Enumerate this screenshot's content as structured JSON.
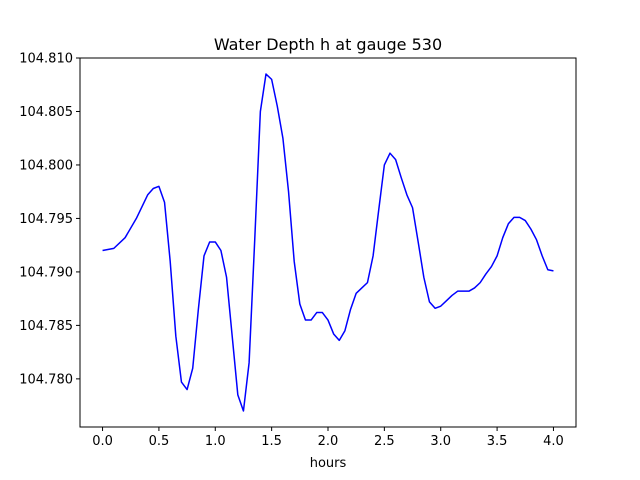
{
  "chart_data": {
    "type": "line",
    "title": "Water Depth h at gauge 530",
    "xlabel": "hours",
    "ylabel": "",
    "xlim": [
      -0.2,
      4.2
    ],
    "ylim": [
      104.7755,
      104.81
    ],
    "xticks": [
      0.0,
      0.5,
      1.0,
      1.5,
      2.0,
      2.5,
      3.0,
      3.5,
      4.0
    ],
    "xtick_labels": [
      "0.0",
      "0.5",
      "1.0",
      "1.5",
      "2.0",
      "2.5",
      "3.0",
      "3.5",
      "4.0"
    ],
    "yticks": [
      104.78,
      104.785,
      104.79,
      104.795,
      104.8,
      104.805,
      104.81
    ],
    "ytick_labels": [
      "104.780",
      "104.785",
      "104.790",
      "104.795",
      "104.800",
      "104.805",
      "104.810"
    ],
    "grid": false,
    "series": [
      {
        "color": "#0000ff",
        "x": [
          0.0,
          0.1,
          0.2,
          0.3,
          0.4,
          0.45,
          0.5,
          0.55,
          0.6,
          0.65,
          0.7,
          0.75,
          0.8,
          0.85,
          0.9,
          0.95,
          1.0,
          1.05,
          1.1,
          1.15,
          1.2,
          1.25,
          1.3,
          1.35,
          1.4,
          1.45,
          1.5,
          1.55,
          1.6,
          1.65,
          1.7,
          1.75,
          1.8,
          1.85,
          1.9,
          1.95,
          2.0,
          2.05,
          2.1,
          2.15,
          2.2,
          2.25,
          2.3,
          2.35,
          2.4,
          2.45,
          2.5,
          2.55,
          2.6,
          2.65,
          2.7,
          2.75,
          2.8,
          2.85,
          2.9,
          2.95,
          3.0,
          3.05,
          3.1,
          3.15,
          3.2,
          3.25,
          3.3,
          3.35,
          3.4,
          3.45,
          3.5,
          3.55,
          3.6,
          3.65,
          3.7,
          3.75,
          3.8,
          3.85,
          3.9,
          3.95,
          4.0
        ],
        "y": [
          104.792,
          104.7922,
          104.7932,
          104.795,
          104.7972,
          104.7978,
          104.798,
          104.7965,
          104.791,
          104.784,
          104.7797,
          104.779,
          104.781,
          104.7865,
          104.7915,
          104.7928,
          104.7928,
          104.792,
          104.7895,
          104.784,
          104.7785,
          104.777,
          104.7815,
          104.793,
          104.805,
          104.8085,
          104.808,
          104.8055,
          104.8025,
          104.7975,
          104.791,
          104.787,
          104.7855,
          104.7855,
          104.7862,
          104.7862,
          104.7855,
          104.7842,
          104.7836,
          104.7845,
          104.7865,
          104.788,
          104.7885,
          104.789,
          104.7915,
          104.7958,
          104.8,
          104.8011,
          104.8005,
          104.7988,
          104.7972,
          104.796,
          104.7928,
          104.7895,
          104.7872,
          104.7866,
          104.7868,
          104.7873,
          104.7878,
          104.7882,
          104.7882,
          104.7882,
          104.7885,
          104.789,
          104.7898,
          104.7905,
          104.7915,
          104.7932,
          104.7945,
          104.7951,
          104.7951,
          104.7948,
          104.794,
          104.793,
          104.7915,
          104.7902,
          104.7901
        ]
      }
    ]
  }
}
